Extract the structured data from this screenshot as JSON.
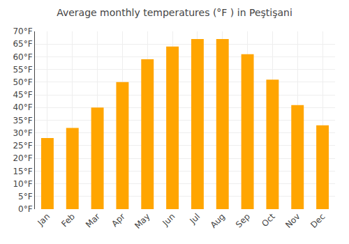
{
  "chart_data": {
    "type": "bar",
    "title": "Average monthly temperatures (°F ) in Peşti‌şani",
    "categories": [
      "Jan",
      "Feb",
      "Mar",
      "Apr",
      "May",
      "Jun",
      "Jul",
      "Aug",
      "Sep",
      "Oct",
      "Nov",
      "Dec"
    ],
    "values": [
      28,
      32,
      40,
      50,
      59,
      64,
      67,
      67,
      61,
      51,
      41,
      33
    ],
    "color": "#FFA500",
    "ylim": [
      0,
      70
    ],
    "yticks": [
      {
        "value": 0,
        "label": "0°F"
      },
      {
        "value": 5,
        "label": "5°F"
      },
      {
        "value": 10,
        "label": "10°F"
      },
      {
        "value": 15,
        "label": "15°F"
      },
      {
        "value": 20,
        "label": "20°F"
      },
      {
        "value": 25,
        "label": "25°F"
      },
      {
        "value": 30,
        "label": "30°F"
      },
      {
        "value": 35,
        "label": "35°F"
      },
      {
        "value": 40,
        "label": "40°F"
      },
      {
        "value": 45,
        "label": "45°F"
      },
      {
        "value": 50,
        "label": "50°F"
      },
      {
        "value": 55,
        "label": "55°F"
      },
      {
        "value": 60,
        "label": "60°F"
      },
      {
        "value": 65,
        "label": "65°F"
      },
      {
        "value": 70,
        "label": "70°F"
      }
    ],
    "grid": true
  }
}
